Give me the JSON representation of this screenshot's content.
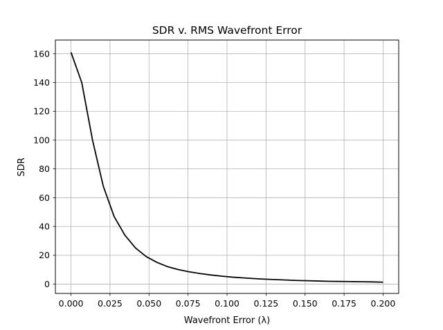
{
  "chart_data": {
    "type": "line",
    "title": "SDR v. RMS Wavefront Error",
    "xlabel": "Wavefront Error (λ)",
    "ylabel": "SDR",
    "xlim": [
      -0.01,
      0.21
    ],
    "ylim": [
      -6.5,
      169.5
    ],
    "grid": true,
    "x_ticks": [
      0.0,
      0.025,
      0.05,
      0.075,
      0.1,
      0.125,
      0.15,
      0.175,
      0.2
    ],
    "x_tick_labels": [
      "0.000",
      "0.025",
      "0.050",
      "0.075",
      "0.100",
      "0.125",
      "0.150",
      "0.175",
      "0.200"
    ],
    "y_ticks": [
      0,
      20,
      40,
      60,
      80,
      100,
      120,
      140,
      160
    ],
    "y_tick_labels": [
      "0",
      "20",
      "40",
      "60",
      "80",
      "100",
      "120",
      "140",
      "160"
    ],
    "series": [
      {
        "color": "#000000",
        "x": [
          0.0,
          0.0069,
          0.0138,
          0.0207,
          0.0276,
          0.0345,
          0.0414,
          0.0483,
          0.0552,
          0.0621,
          0.069,
          0.0759,
          0.0828,
          0.0897,
          0.0966,
          0.1034,
          0.1103,
          0.1172,
          0.1241,
          0.131,
          0.1379,
          0.1448,
          0.1517,
          0.1586,
          0.1655,
          0.1724,
          0.1793,
          0.1862,
          0.1931,
          0.2
        ],
        "values": [
          161,
          140,
          100,
          68,
          47,
          34,
          25,
          19,
          15,
          12,
          10,
          8.5,
          7.3,
          6.3,
          5.5,
          4.8,
          4.3,
          3.8,
          3.4,
          3.1,
          2.8,
          2.5,
          2.3,
          2.1,
          1.9,
          1.8,
          1.7,
          1.6,
          1.5,
          1.3
        ]
      }
    ]
  }
}
